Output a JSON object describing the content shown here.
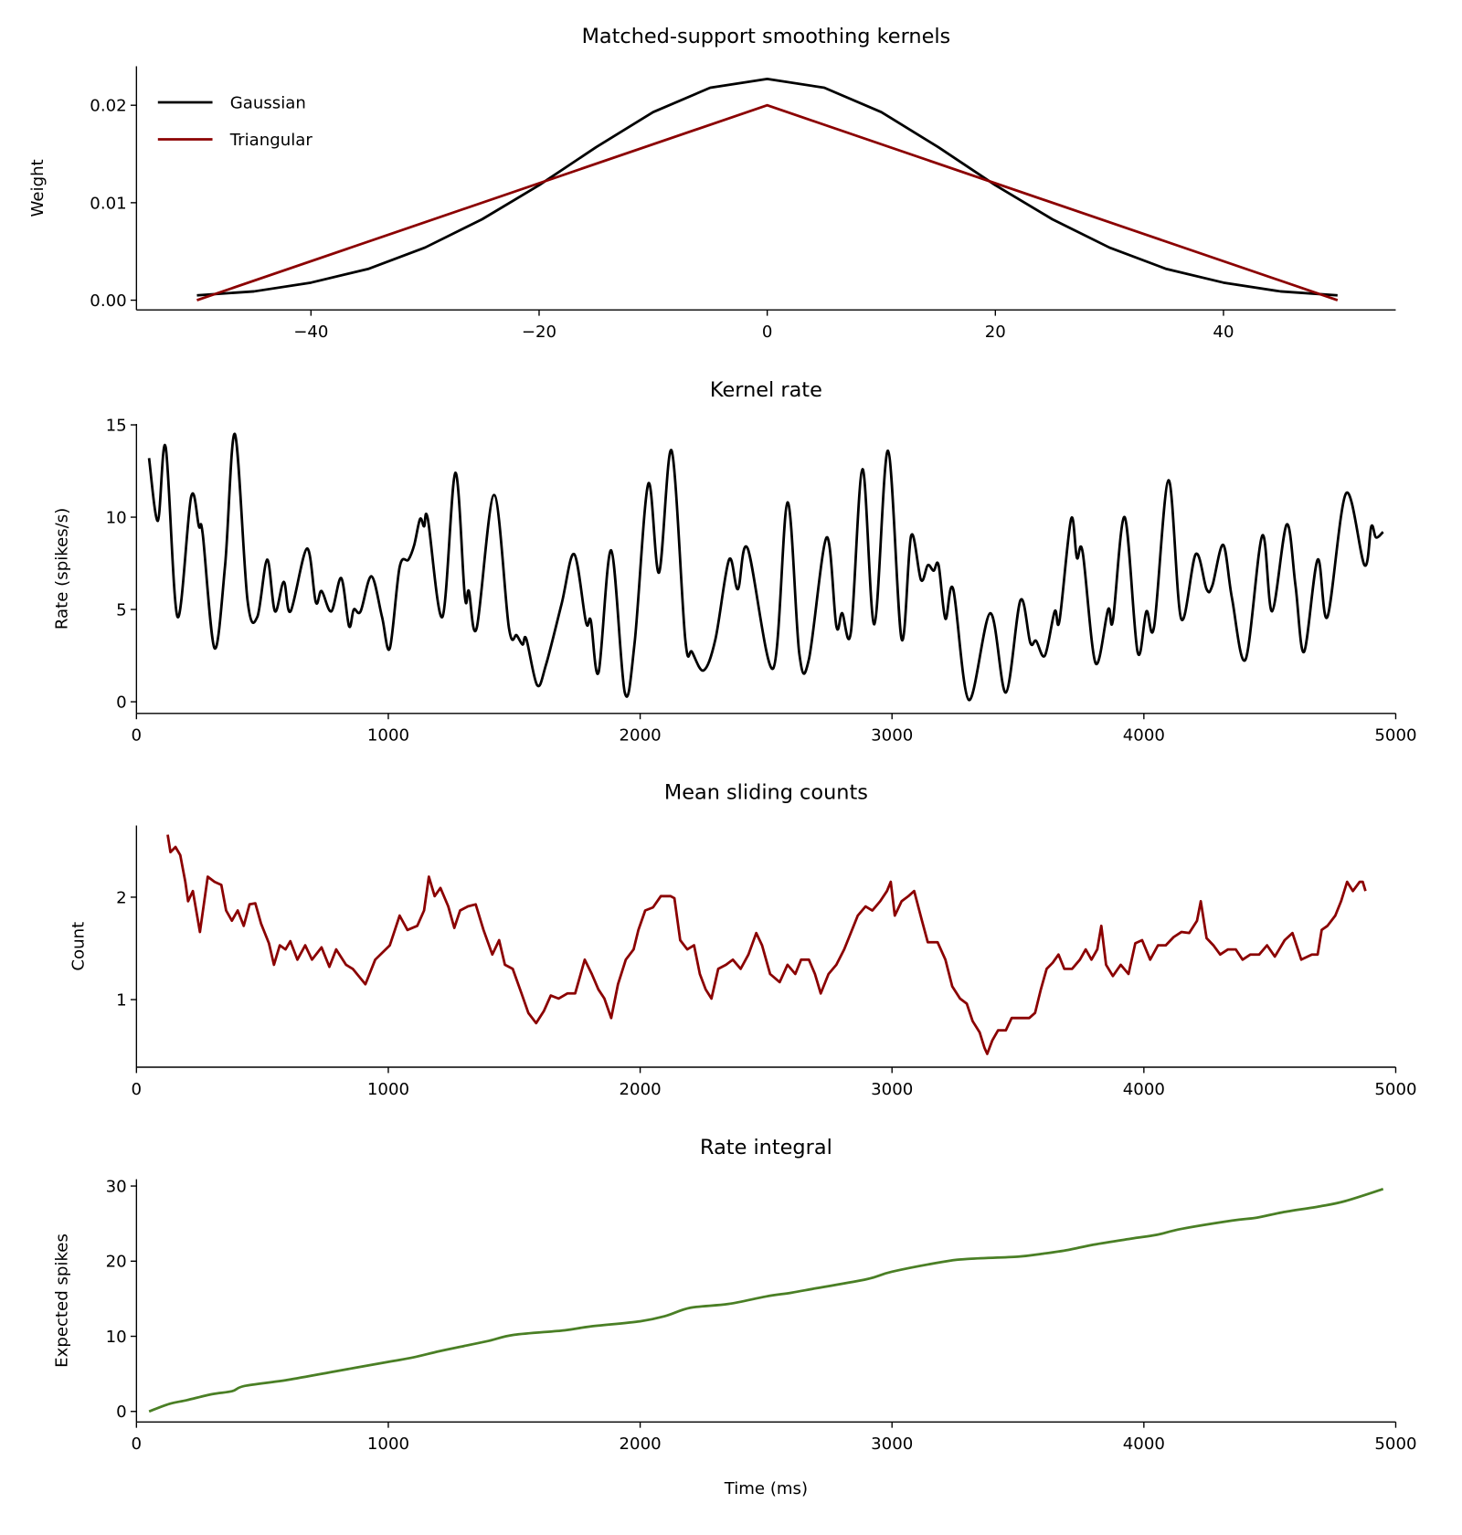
{
  "chart_data": [
    {
      "type": "line",
      "title": "Matched-support smoothing kernels",
      "xlabel": "",
      "ylabel": "Weight",
      "xlim": [
        -55.3,
        55.1
      ],
      "ylim": [
        -0.001,
        0.024
      ],
      "xticks": [
        -40,
        -20,
        0,
        20,
        40
      ],
      "xtick_labels": [
        "−40",
        "−20",
        "0",
        "20",
        "40"
      ],
      "yticks": [
        0,
        0.01,
        0.02
      ],
      "ytick_labels": [
        "0.00",
        "0.01",
        "0.02"
      ],
      "grid": false,
      "legend": "top-left",
      "series": [
        {
          "name": "Gaussian",
          "color": "#000000",
          "smooth": false,
          "x": [
            -50,
            -45,
            -40,
            -35,
            -30,
            -25,
            -20,
            -15,
            -10,
            -5,
            0,
            5,
            10,
            15,
            20,
            25,
            30,
            35,
            40,
            45,
            50
          ],
          "y": [
            0.0005,
            0.0009,
            0.0018,
            0.0032,
            0.0054,
            0.0083,
            0.0118,
            0.0157,
            0.0193,
            0.0218,
            0.0227,
            0.0218,
            0.0193,
            0.0157,
            0.0118,
            0.0083,
            0.0054,
            0.0032,
            0.0018,
            0.0009,
            0.0005
          ]
        },
        {
          "name": "Triangular",
          "color": "#8b0000",
          "smooth": false,
          "x": [
            -50,
            0,
            50
          ],
          "y": [
            0,
            0.02,
            0
          ]
        }
      ]
    },
    {
      "type": "line",
      "title": "Kernel rate",
      "xlabel": "",
      "ylabel": "Rate (spikes/s)",
      "xlim": [
        0,
        5000
      ],
      "ylim": [
        -0.63,
        15.05
      ],
      "xticks": [
        0,
        1000,
        2000,
        3000,
        4000,
        5000
      ],
      "xtick_labels": [
        "0",
        "1000",
        "2000",
        "3000",
        "4000",
        "5000"
      ],
      "yticks": [
        0,
        5,
        10,
        15
      ],
      "ytick_labels": [
        "0",
        "5",
        "10",
        "15"
      ],
      "grid": false,
      "series": [
        {
          "color": "#000000",
          "smooth": true,
          "x": [
            50,
            85,
            116,
            163,
            217,
            248,
            263,
            310,
            352,
            391,
            441,
            480,
            519,
            550,
            585,
            612,
            677,
            712,
            735,
            774,
            813,
            844,
            863,
            890,
            933,
            975,
            1006,
            1045,
            1080,
            1103,
            1126,
            1142,
            1157,
            1215,
            1266,
            1304,
            1320,
            1351,
            1420,
            1479,
            1510,
            1533,
            1548,
            1591,
            1626,
            1688,
            1738,
            1785,
            1804,
            1835,
            1885,
            1939,
            1978,
            2032,
            2075,
            2125,
            2179,
            2206,
            2252,
            2299,
            2353,
            2388,
            2427,
            2528,
            2585,
            2632,
            2670,
            2740,
            2779,
            2802,
            2837,
            2883,
            2930,
            2984,
            3038,
            3076,
            3115,
            3142,
            3165,
            3185,
            3212,
            3243,
            3305,
            3390,
            3452,
            3510,
            3549,
            3572,
            3607,
            3646,
            3665,
            3711,
            3734,
            3757,
            3808,
            3858,
            3877,
            3924,
            3975,
            4010,
            4041,
            4098,
            4148,
            4206,
            4249,
            4272,
            4315,
            4350,
            4404,
            4470,
            4509,
            4567,
            4602,
            4636,
            4690,
            4729,
            4803,
            4876,
            4903,
            4922,
            4950
          ],
          "y": [
            13.2,
            9.8,
            13.8,
            4.6,
            11.1,
            9.5,
            9.1,
            2.9,
            7.4,
            14.5,
            5.5,
            4.6,
            7.7,
            4.9,
            6.5,
            4.9,
            8.3,
            5.4,
            6.0,
            4.9,
            6.7,
            4.1,
            5.0,
            4.9,
            6.8,
            4.6,
            2.9,
            7.3,
            7.7,
            8.5,
            9.9,
            9.5,
            9.9,
            4.6,
            12.4,
            5.7,
            6.0,
            4.0,
            11.2,
            4.0,
            3.6,
            3.1,
            3.4,
            0.9,
            2.0,
            5.3,
            8.0,
            4.3,
            4.4,
            1.6,
            8.2,
            0.5,
            3.2,
            11.8,
            7.0,
            13.6,
            3.4,
            2.7,
            1.7,
            3.4,
            7.7,
            6.1,
            8.3,
            1.8,
            10.8,
            2.6,
            2.3,
            8.9,
            4.1,
            4.8,
            3.8,
            12.6,
            4.2,
            13.6,
            3.4,
            9.0,
            6.6,
            7.4,
            7.1,
            7.4,
            4.5,
            6.1,
            0.1,
            4.8,
            0.5,
            5.5,
            3.2,
            3.3,
            2.5,
            4.9,
            4.4,
            9.9,
            7.8,
            8.1,
            2.1,
            5.0,
            4.4,
            10.0,
            2.7,
            4.9,
            4.1,
            12.0,
            4.5,
            8.0,
            6.1,
            6.3,
            8.5,
            5.6,
            2.3,
            9.0,
            4.9,
            9.6,
            6.3,
            2.7,
            7.7,
            4.6,
            11.3,
            7.4,
            9.5,
            8.9,
            9.2
          ]
        }
      ]
    },
    {
      "type": "line",
      "title": "Mean sliding counts",
      "xlabel": "",
      "ylabel": "Count",
      "xlim": [
        0,
        5000
      ],
      "ylim": [
        0.34,
        2.7
      ],
      "xticks": [
        0,
        1000,
        2000,
        3000,
        4000,
        5000
      ],
      "xtick_labels": [
        "0",
        "1000",
        "2000",
        "3000",
        "4000",
        "5000"
      ],
      "yticks": [
        1,
        2
      ],
      "ytick_labels": [
        "1",
        "2"
      ],
      "grid": false,
      "series": [
        {
          "color": "#8b0000",
          "smooth": false,
          "x": [
            124,
            135,
            155,
            174,
            194,
            205,
            224,
            252,
            283,
            310,
            337,
            356,
            379,
            402,
            426,
            449,
            472,
            495,
            526,
            546,
            569,
            592,
            611,
            639,
            670,
            697,
            735,
            766,
            793,
            832,
            859,
            909,
            948,
            1006,
            1045,
            1076,
            1115,
            1142,
            1161,
            1184,
            1207,
            1238,
            1262,
            1285,
            1316,
            1347,
            1378,
            1413,
            1440,
            1463,
            1494,
            1529,
            1556,
            1587,
            1618,
            1645,
            1676,
            1711,
            1742,
            1780,
            1808,
            1834,
            1858,
            1885,
            1912,
            1943,
            1974,
            1993,
            2020,
            2051,
            2082,
            2121,
            2136,
            2159,
            2187,
            2214,
            2237,
            2260,
            2283,
            2310,
            2341,
            2368,
            2399,
            2430,
            2461,
            2484,
            2516,
            2554,
            2585,
            2616,
            2639,
            2670,
            2694,
            2717,
            2748,
            2779,
            2810,
            2833,
            2864,
            2895,
            2922,
            2953,
            2980,
            2995,
            3011,
            3038,
            3065,
            3088,
            3119,
            3142,
            3181,
            3212,
            3239,
            3270,
            3297,
            3320,
            3348,
            3367,
            3378,
            3398,
            3421,
            3452,
            3475,
            3506,
            3545,
            3568,
            3591,
            3614,
            3638,
            3661,
            3684,
            3715,
            3746,
            3769,
            3792,
            3815,
            3831,
            3850,
            3877,
            3908,
            3939,
            3966,
            3993,
            4025,
            4056,
            4087,
            4118,
            4149,
            4180,
            4211,
            4226,
            4249,
            4276,
            4303,
            4334,
            4365,
            4392,
            4423,
            4458,
            4489,
            4520,
            4559,
            4590,
            4625,
            4667,
            4690,
            4706,
            4729,
            4760,
            4783,
            4807,
            4830,
            4857,
            4869,
            4880
          ],
          "y": [
            2.61,
            2.44,
            2.49,
            2.41,
            2.15,
            1.96,
            2.06,
            1.66,
            2.2,
            2.15,
            2.12,
            1.87,
            1.77,
            1.87,
            1.72,
            1.93,
            1.94,
            1.74,
            1.55,
            1.34,
            1.53,
            1.49,
            1.57,
            1.39,
            1.53,
            1.39,
            1.51,
            1.32,
            1.49,
            1.34,
            1.3,
            1.15,
            1.39,
            1.53,
            1.82,
            1.68,
            1.72,
            1.87,
            2.2,
            2.01,
            2.09,
            1.91,
            1.7,
            1.87,
            1.91,
            1.93,
            1.68,
            1.44,
            1.58,
            1.34,
            1.3,
            1.06,
            0.87,
            0.77,
            0.89,
            1.04,
            1.01,
            1.06,
            1.06,
            1.39,
            1.25,
            1.1,
            1.01,
            0.82,
            1.15,
            1.39,
            1.49,
            1.68,
            1.87,
            1.9,
            2.01,
            2.01,
            1.99,
            1.58,
            1.49,
            1.53,
            1.25,
            1.1,
            1.01,
            1.3,
            1.34,
            1.39,
            1.3,
            1.44,
            1.65,
            1.53,
            1.25,
            1.17,
            1.34,
            1.25,
            1.39,
            1.39,
            1.25,
            1.06,
            1.25,
            1.34,
            1.49,
            1.63,
            1.82,
            1.91,
            1.87,
            1.96,
            2.06,
            2.15,
            1.82,
            1.96,
            2.01,
            2.06,
            1.77,
            1.56,
            1.56,
            1.39,
            1.13,
            1.01,
            0.96,
            0.79,
            0.68,
            0.53,
            0.47,
            0.6,
            0.7,
            0.7,
            0.82,
            0.82,
            0.82,
            0.87,
            1.1,
            1.3,
            1.36,
            1.44,
            1.3,
            1.3,
            1.39,
            1.49,
            1.39,
            1.49,
            1.72,
            1.34,
            1.23,
            1.34,
            1.25,
            1.55,
            1.58,
            1.39,
            1.53,
            1.53,
            1.61,
            1.66,
            1.65,
            1.77,
            1.96,
            1.6,
            1.53,
            1.44,
            1.49,
            1.49,
            1.39,
            1.44,
            1.44,
            1.53,
            1.42,
            1.58,
            1.65,
            1.39,
            1.44,
            1.44,
            1.68,
            1.72,
            1.82,
            1.96,
            2.15,
            2.06,
            2.15,
            2.15,
            2.06
          ]
        }
      ]
    },
    {
      "type": "line",
      "title": "Rate integral",
      "xlabel": "Time (ms)",
      "ylabel": "Expected spikes",
      "xlim": [
        0,
        5000
      ],
      "ylim": [
        -1.4,
        30.9
      ],
      "xticks": [
        0,
        1000,
        2000,
        3000,
        4000,
        5000
      ],
      "xtick_labels": [
        "0",
        "1000",
        "2000",
        "3000",
        "4000",
        "5000"
      ],
      "yticks": [
        0,
        10,
        20,
        30
      ],
      "ytick_labels": [
        "0",
        "10",
        "20",
        "30"
      ],
      "grid": false,
      "series": [
        {
          "color": "#4a7f25",
          "smooth": true,
          "x": [
            50,
            130,
            200,
            300,
            380,
            430,
            600,
            800,
            1000,
            1100,
            1200,
            1300,
            1400,
            1500,
            1700,
            1800,
            2000,
            2100,
            2200,
            2350,
            2500,
            2600,
            2700,
            2900,
            3000,
            3200,
            3300,
            3500,
            3600,
            3700,
            3800,
            3950,
            4050,
            4150,
            4350,
            4450,
            4550,
            4700,
            4800,
            4950
          ],
          "y": [
            0,
            1.0,
            1.5,
            2.3,
            2.7,
            3.4,
            4.2,
            5.4,
            6.6,
            7.2,
            8.0,
            8.7,
            9.4,
            10.2,
            10.8,
            11.3,
            12.0,
            12.7,
            13.8,
            14.3,
            15.3,
            15.8,
            16.4,
            17.6,
            18.6,
            19.9,
            20.3,
            20.6,
            21.0,
            21.5,
            22.2,
            23.0,
            23.5,
            24.3,
            25.4,
            25.8,
            26.5,
            27.3,
            28.0,
            29.6
          ]
        }
      ]
    }
  ]
}
